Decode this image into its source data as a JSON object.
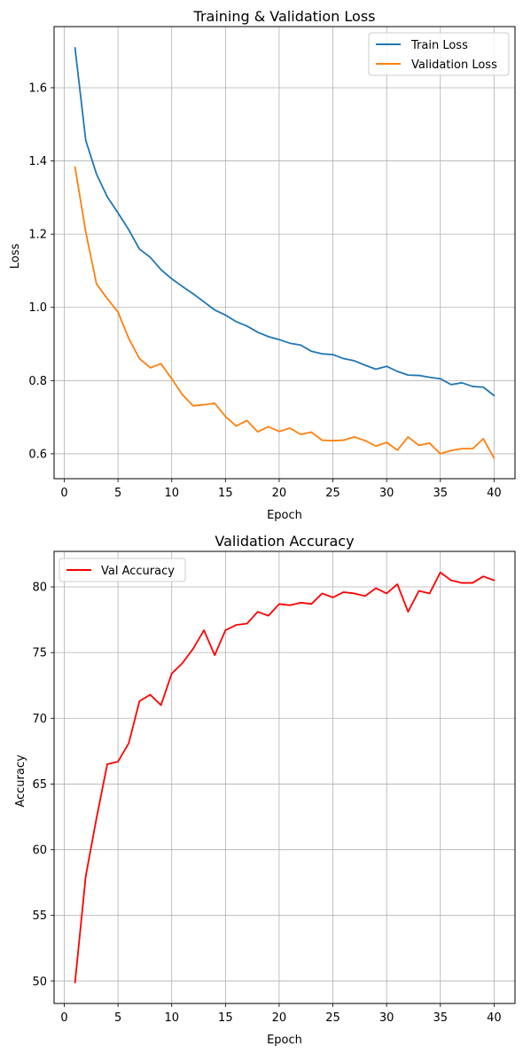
{
  "chart_data": [
    {
      "type": "line",
      "title": "Training & Validation Loss",
      "xlabel": "Epoch",
      "ylabel": "Loss",
      "xlim": [
        -0.95,
        41.95
      ],
      "ylim": [
        0.532,
        1.767
      ],
      "xticks": [
        0,
        5,
        10,
        15,
        20,
        25,
        30,
        35,
        40
      ],
      "yticks": [
        0.6,
        0.8,
        1.0,
        1.2,
        1.4,
        1.6
      ],
      "ytick_labels": [
        "0.6",
        "0.8",
        "1.0",
        "1.2",
        "1.4",
        "1.6"
      ],
      "grid": true,
      "legend_position": "upper-right",
      "x": [
        1,
        2,
        3,
        4,
        5,
        6,
        7,
        8,
        9,
        10,
        11,
        12,
        13,
        14,
        15,
        16,
        17,
        18,
        19,
        20,
        21,
        22,
        23,
        24,
        25,
        26,
        27,
        28,
        29,
        30,
        31,
        32,
        33,
        34,
        35,
        36,
        37,
        38,
        39,
        40
      ],
      "series": [
        {
          "name": "Train Loss",
          "color": "#1f77b4",
          "values": [
            1.709,
            1.456,
            1.364,
            1.302,
            1.258,
            1.212,
            1.159,
            1.137,
            1.103,
            1.078,
            1.057,
            1.037,
            1.015,
            0.993,
            0.979,
            0.961,
            0.949,
            0.932,
            0.92,
            0.912,
            0.902,
            0.897,
            0.88,
            0.873,
            0.871,
            0.86,
            0.854,
            0.842,
            0.831,
            0.839,
            0.825,
            0.815,
            0.814,
            0.809,
            0.805,
            0.789,
            0.794,
            0.784,
            0.782,
            0.759
          ]
        },
        {
          "name": "Validation Loss",
          "color": "#ff7f0e",
          "values": [
            1.383,
            1.206,
            1.064,
            1.024,
            0.987,
            0.915,
            0.86,
            0.835,
            0.846,
            0.805,
            0.761,
            0.731,
            0.734,
            0.738,
            0.702,
            0.676,
            0.691,
            0.66,
            0.674,
            0.661,
            0.67,
            0.653,
            0.659,
            0.637,
            0.636,
            0.637,
            0.646,
            0.636,
            0.621,
            0.631,
            0.61,
            0.646,
            0.623,
            0.629,
            0.6,
            0.609,
            0.614,
            0.614,
            0.641,
            0.588
          ]
        }
      ]
    },
    {
      "type": "line",
      "title": "Validation Accuracy",
      "xlabel": "Epoch",
      "ylabel": "Accuracy",
      "xlim": [
        -0.95,
        41.95
      ],
      "ylim": [
        48.3,
        82.7
      ],
      "xticks": [
        0,
        5,
        10,
        15,
        20,
        25,
        30,
        35,
        40
      ],
      "yticks": [
        50,
        55,
        60,
        65,
        70,
        75,
        80
      ],
      "ytick_labels": [
        "50",
        "55",
        "60",
        "65",
        "70",
        "75",
        "80"
      ],
      "grid": true,
      "legend_position": "upper-left",
      "x": [
        1,
        2,
        3,
        4,
        5,
        6,
        7,
        8,
        9,
        10,
        11,
        12,
        13,
        14,
        15,
        16,
        17,
        18,
        19,
        20,
        21,
        22,
        23,
        24,
        25,
        26,
        27,
        28,
        29,
        30,
        31,
        32,
        33,
        34,
        35,
        36,
        37,
        38,
        39,
        40
      ],
      "series": [
        {
          "name": "Val Accuracy",
          "color": "#ff0000",
          "values": [
            49.9,
            58.0,
            62.4,
            66.5,
            66.7,
            68.1,
            71.3,
            71.8,
            71.0,
            73.4,
            74.2,
            75.3,
            76.7,
            74.8,
            76.7,
            77.1,
            77.2,
            78.1,
            77.8,
            78.7,
            78.6,
            78.8,
            78.7,
            79.5,
            79.2,
            79.6,
            79.5,
            79.3,
            79.9,
            79.5,
            80.2,
            78.1,
            79.7,
            79.5,
            81.1,
            80.5,
            80.3,
            80.3,
            80.8,
            80.5
          ]
        }
      ]
    }
  ]
}
